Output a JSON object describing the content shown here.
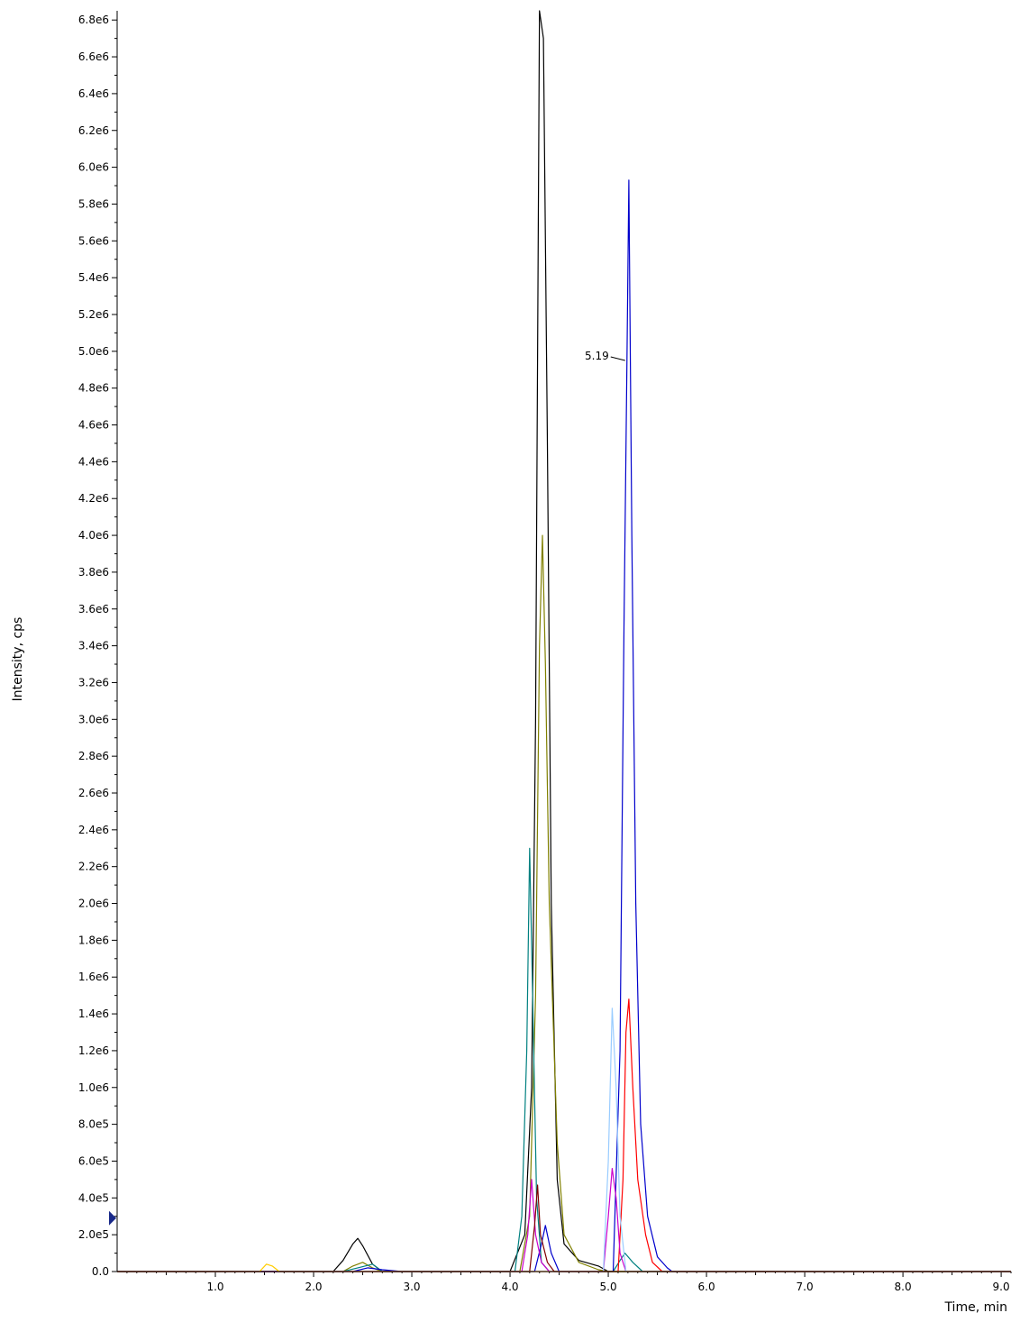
{
  "chart_data": {
    "type": "line",
    "title": "",
    "xlabel": "Time, min",
    "ylabel": "Intensity, cps",
    "xlim": [
      0.0,
      9.1
    ],
    "ylim": [
      0,
      6850000
    ],
    "grid": false,
    "legend": "none",
    "x_ticks": [
      1.0,
      2.0,
      3.0,
      4.0,
      5.0,
      6.0,
      7.0,
      8.0,
      9.0
    ],
    "x_tick_labels": [
      "1.0",
      "2.0",
      "3.0",
      "4.0",
      "5.0",
      "6.0",
      "7.0",
      "8.0",
      "9.0"
    ],
    "y_ticks": [
      0,
      200000,
      400000,
      600000,
      800000,
      1000000,
      1200000,
      1400000,
      1600000,
      1800000,
      2000000,
      2200000,
      2400000,
      2600000,
      2800000,
      3000000,
      3200000,
      3400000,
      3600000,
      3800000,
      4000000,
      4200000,
      4400000,
      4600000,
      4800000,
      5000000,
      5200000,
      5400000,
      5600000,
      5800000,
      6000000,
      6200000,
      6400000,
      6600000,
      6800000
    ],
    "y_tick_labels": [
      "0.0",
      "2.0e5",
      "4.0e5",
      "6.0e5",
      "8.0e5",
      "1.0e6",
      "1.2e6",
      "1.4e6",
      "1.6e6",
      "1.8e6",
      "2.0e6",
      "2.2e6",
      "2.4e6",
      "2.6e6",
      "2.8e6",
      "3.0e6",
      "3.2e6",
      "3.4e6",
      "3.6e6",
      "3.8e6",
      "4.0e6",
      "4.2e6",
      "4.4e6",
      "4.6e6",
      "4.8e6",
      "5.0e6",
      "5.2e6",
      "5.4e6",
      "5.6e6",
      "5.8e6",
      "6.0e6",
      "6.2e6",
      "6.4e6",
      "6.6e6",
      "6.8e6"
    ],
    "annotations": [
      {
        "text": "5.19",
        "x": 5.19,
        "y": 4950000
      }
    ],
    "series": [
      {
        "color": "#000000",
        "points": [
          [
            0.0,
            0
          ],
          [
            2.2,
            0
          ],
          [
            2.3,
            60000
          ],
          [
            2.4,
            150000
          ],
          [
            2.45,
            180000
          ],
          [
            2.5,
            140000
          ],
          [
            2.6,
            40000
          ],
          [
            2.7,
            0
          ],
          [
            4.0,
            0
          ],
          [
            4.15,
            200000
          ],
          [
            4.22,
            1000000
          ],
          [
            4.26,
            3000000
          ],
          [
            4.3,
            6850000
          ],
          [
            4.34,
            6700000
          ],
          [
            4.38,
            4500000
          ],
          [
            4.42,
            2000000
          ],
          [
            4.48,
            500000
          ],
          [
            4.55,
            150000
          ],
          [
            4.7,
            60000
          ],
          [
            4.9,
            30000
          ],
          [
            5.0,
            0
          ],
          [
            9.1,
            0
          ]
        ]
      },
      {
        "color": "#808000",
        "points": [
          [
            0.0,
            0
          ],
          [
            2.3,
            0
          ],
          [
            2.4,
            30000
          ],
          [
            2.5,
            50000
          ],
          [
            2.6,
            20000
          ],
          [
            2.7,
            0
          ],
          [
            4.1,
            0
          ],
          [
            4.2,
            300000
          ],
          [
            4.26,
            1500000
          ],
          [
            4.3,
            3400000
          ],
          [
            4.33,
            4000000
          ],
          [
            4.36,
            3300000
          ],
          [
            4.4,
            2000000
          ],
          [
            4.48,
            700000
          ],
          [
            4.55,
            200000
          ],
          [
            4.7,
            50000
          ],
          [
            4.9,
            10000
          ],
          [
            5.0,
            0
          ],
          [
            9.1,
            0
          ]
        ]
      },
      {
        "color": "#008080",
        "points": [
          [
            0.0,
            0
          ],
          [
            2.3,
            0
          ],
          [
            2.45,
            20000
          ],
          [
            2.6,
            40000
          ],
          [
            2.7,
            0
          ],
          [
            4.05,
            0
          ],
          [
            4.12,
            300000
          ],
          [
            4.17,
            1200000
          ],
          [
            4.2,
            2300000
          ],
          [
            4.23,
            1500000
          ],
          [
            4.27,
            400000
          ],
          [
            4.32,
            50000
          ],
          [
            4.4,
            0
          ],
          [
            5.05,
            0
          ],
          [
            5.12,
            60000
          ],
          [
            5.17,
            100000
          ],
          [
            5.25,
            50000
          ],
          [
            5.35,
            0
          ],
          [
            9.1,
            0
          ]
        ]
      },
      {
        "color": "#0000cc",
        "points": [
          [
            0.0,
            0
          ],
          [
            2.4,
            0
          ],
          [
            2.55,
            20000
          ],
          [
            2.7,
            10000
          ],
          [
            2.9,
            0
          ],
          [
            4.25,
            0
          ],
          [
            4.32,
            150000
          ],
          [
            4.36,
            250000
          ],
          [
            4.42,
            100000
          ],
          [
            4.5,
            0
          ],
          [
            5.05,
            0
          ],
          [
            5.12,
            1200000
          ],
          [
            5.16,
            3500000
          ],
          [
            5.19,
            4950000
          ],
          [
            5.21,
            5930000
          ],
          [
            5.24,
            4000000
          ],
          [
            5.28,
            2000000
          ],
          [
            5.33,
            800000
          ],
          [
            5.4,
            300000
          ],
          [
            5.5,
            80000
          ],
          [
            5.6,
            20000
          ],
          [
            5.65,
            0
          ],
          [
            9.1,
            0
          ]
        ]
      },
      {
        "color": "#ff0000",
        "points": [
          [
            0.0,
            0
          ],
          [
            5.1,
            0
          ],
          [
            5.15,
            500000
          ],
          [
            5.18,
            1300000
          ],
          [
            5.21,
            1480000
          ],
          [
            5.25,
            1000000
          ],
          [
            5.3,
            500000
          ],
          [
            5.38,
            200000
          ],
          [
            5.45,
            50000
          ],
          [
            5.55,
            0
          ],
          [
            9.1,
            0
          ]
        ]
      },
      {
        "color": "#cc00cc",
        "points": [
          [
            0.0,
            0
          ],
          [
            4.12,
            0
          ],
          [
            4.18,
            200000
          ],
          [
            4.22,
            500000
          ],
          [
            4.26,
            200000
          ],
          [
            4.32,
            50000
          ],
          [
            4.4,
            0
          ],
          [
            4.95,
            0
          ],
          [
            5.0,
            300000
          ],
          [
            5.04,
            560000
          ],
          [
            5.08,
            400000
          ],
          [
            5.12,
            100000
          ],
          [
            5.18,
            0
          ],
          [
            9.1,
            0
          ]
        ]
      },
      {
        "color": "#99ccff",
        "points": [
          [
            0.0,
            0
          ],
          [
            4.95,
            0
          ],
          [
            5.0,
            600000
          ],
          [
            5.04,
            1430000
          ],
          [
            5.08,
            1000000
          ],
          [
            5.12,
            300000
          ],
          [
            5.18,
            0
          ],
          [
            9.1,
            0
          ]
        ]
      },
      {
        "color": "#800000",
        "points": [
          [
            0.0,
            0
          ],
          [
            4.2,
            0
          ],
          [
            4.25,
            250000
          ],
          [
            4.28,
            470000
          ],
          [
            4.31,
            200000
          ],
          [
            4.38,
            50000
          ],
          [
            4.45,
            0
          ],
          [
            9.1,
            0
          ]
        ]
      },
      {
        "color": "#ffcc00",
        "points": [
          [
            0.0,
            0
          ],
          [
            1.45,
            0
          ],
          [
            1.52,
            40000
          ],
          [
            1.58,
            30000
          ],
          [
            1.65,
            0
          ],
          [
            9.1,
            0
          ]
        ]
      }
    ]
  }
}
